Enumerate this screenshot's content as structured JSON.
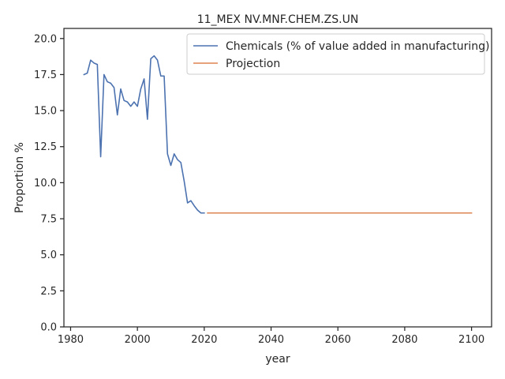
{
  "chart_data": {
    "type": "line",
    "title": "11_MEX NV.MNF.CHEM.ZS.UN",
    "xlabel": "year",
    "ylabel": "Proportion %",
    "xlim": [
      1978,
      2106
    ],
    "ylim": [
      0,
      20.7
    ],
    "xticks": [
      1980,
      2000,
      2020,
      2040,
      2060,
      2080,
      2100
    ],
    "yticks": [
      0.0,
      2.5,
      5.0,
      7.5,
      10.0,
      12.5,
      15.0,
      17.5,
      20.0
    ],
    "ytick_labels": [
      "0.0",
      "2.5",
      "5.0",
      "7.5",
      "10.0",
      "12.5",
      "15.0",
      "17.5",
      "20.0"
    ],
    "grid": false,
    "legend_position": "top-right",
    "series": [
      {
        "name": "Chemicals (% of value added in manufacturing)",
        "color": "#4c72b0",
        "x": [
          1984,
          1985,
          1986,
          1987,
          1988,
          1989,
          1990,
          1991,
          1992,
          1993,
          1994,
          1995,
          1996,
          1997,
          1998,
          1999,
          2000,
          2001,
          2002,
          2003,
          2004,
          2005,
          2006,
          2007,
          2008,
          2009,
          2010,
          2011,
          2012,
          2013,
          2014,
          2015,
          2016,
          2017,
          2018,
          2019,
          2020
        ],
        "y": [
          17.5,
          17.6,
          18.5,
          18.3,
          18.2,
          11.8,
          17.5,
          17.0,
          16.9,
          16.6,
          14.7,
          16.5,
          15.7,
          15.6,
          15.3,
          15.6,
          15.3,
          16.5,
          17.2,
          14.4,
          18.6,
          18.8,
          18.5,
          17.4,
          17.4,
          12.0,
          11.2,
          12.0,
          11.6,
          11.4,
          10.1,
          8.6,
          8.75,
          8.4,
          8.1,
          7.9,
          7.9
        ]
      },
      {
        "name": "Projection",
        "color": "#dd8452",
        "x": [
          2021,
          2100
        ],
        "y": [
          7.9,
          7.9
        ]
      }
    ]
  }
}
